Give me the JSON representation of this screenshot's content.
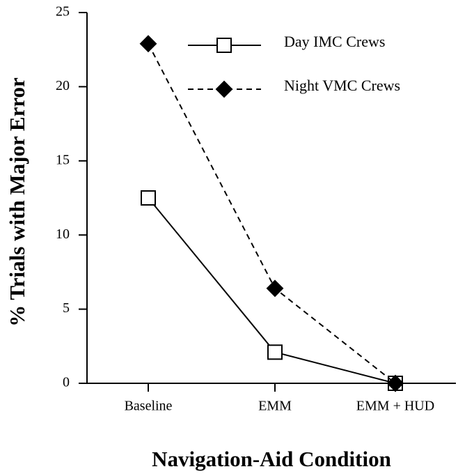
{
  "chart_data": {
    "type": "line",
    "x_label": "Navigation-Aid Condition",
    "y_label": "% Trials with Major Error",
    "categories": [
      "Baseline",
      "EMM",
      "EMM + HUD"
    ],
    "series": [
      {
        "name": "Day IMC Crews",
        "color": "#000000",
        "marker": "square",
        "dashed": false,
        "values": [
          12.5,
          2.1,
          0
        ]
      },
      {
        "name": "Night VMC Crews",
        "color": "#000000",
        "marker": "diamond",
        "dashed": true,
        "values": [
          22.9,
          6.4,
          0
        ]
      }
    ],
    "ylim": [
      0,
      25
    ],
    "yticks": [
      0,
      5,
      10,
      15,
      20,
      25
    ],
    "grid": false,
    "legend": "upper right"
  }
}
